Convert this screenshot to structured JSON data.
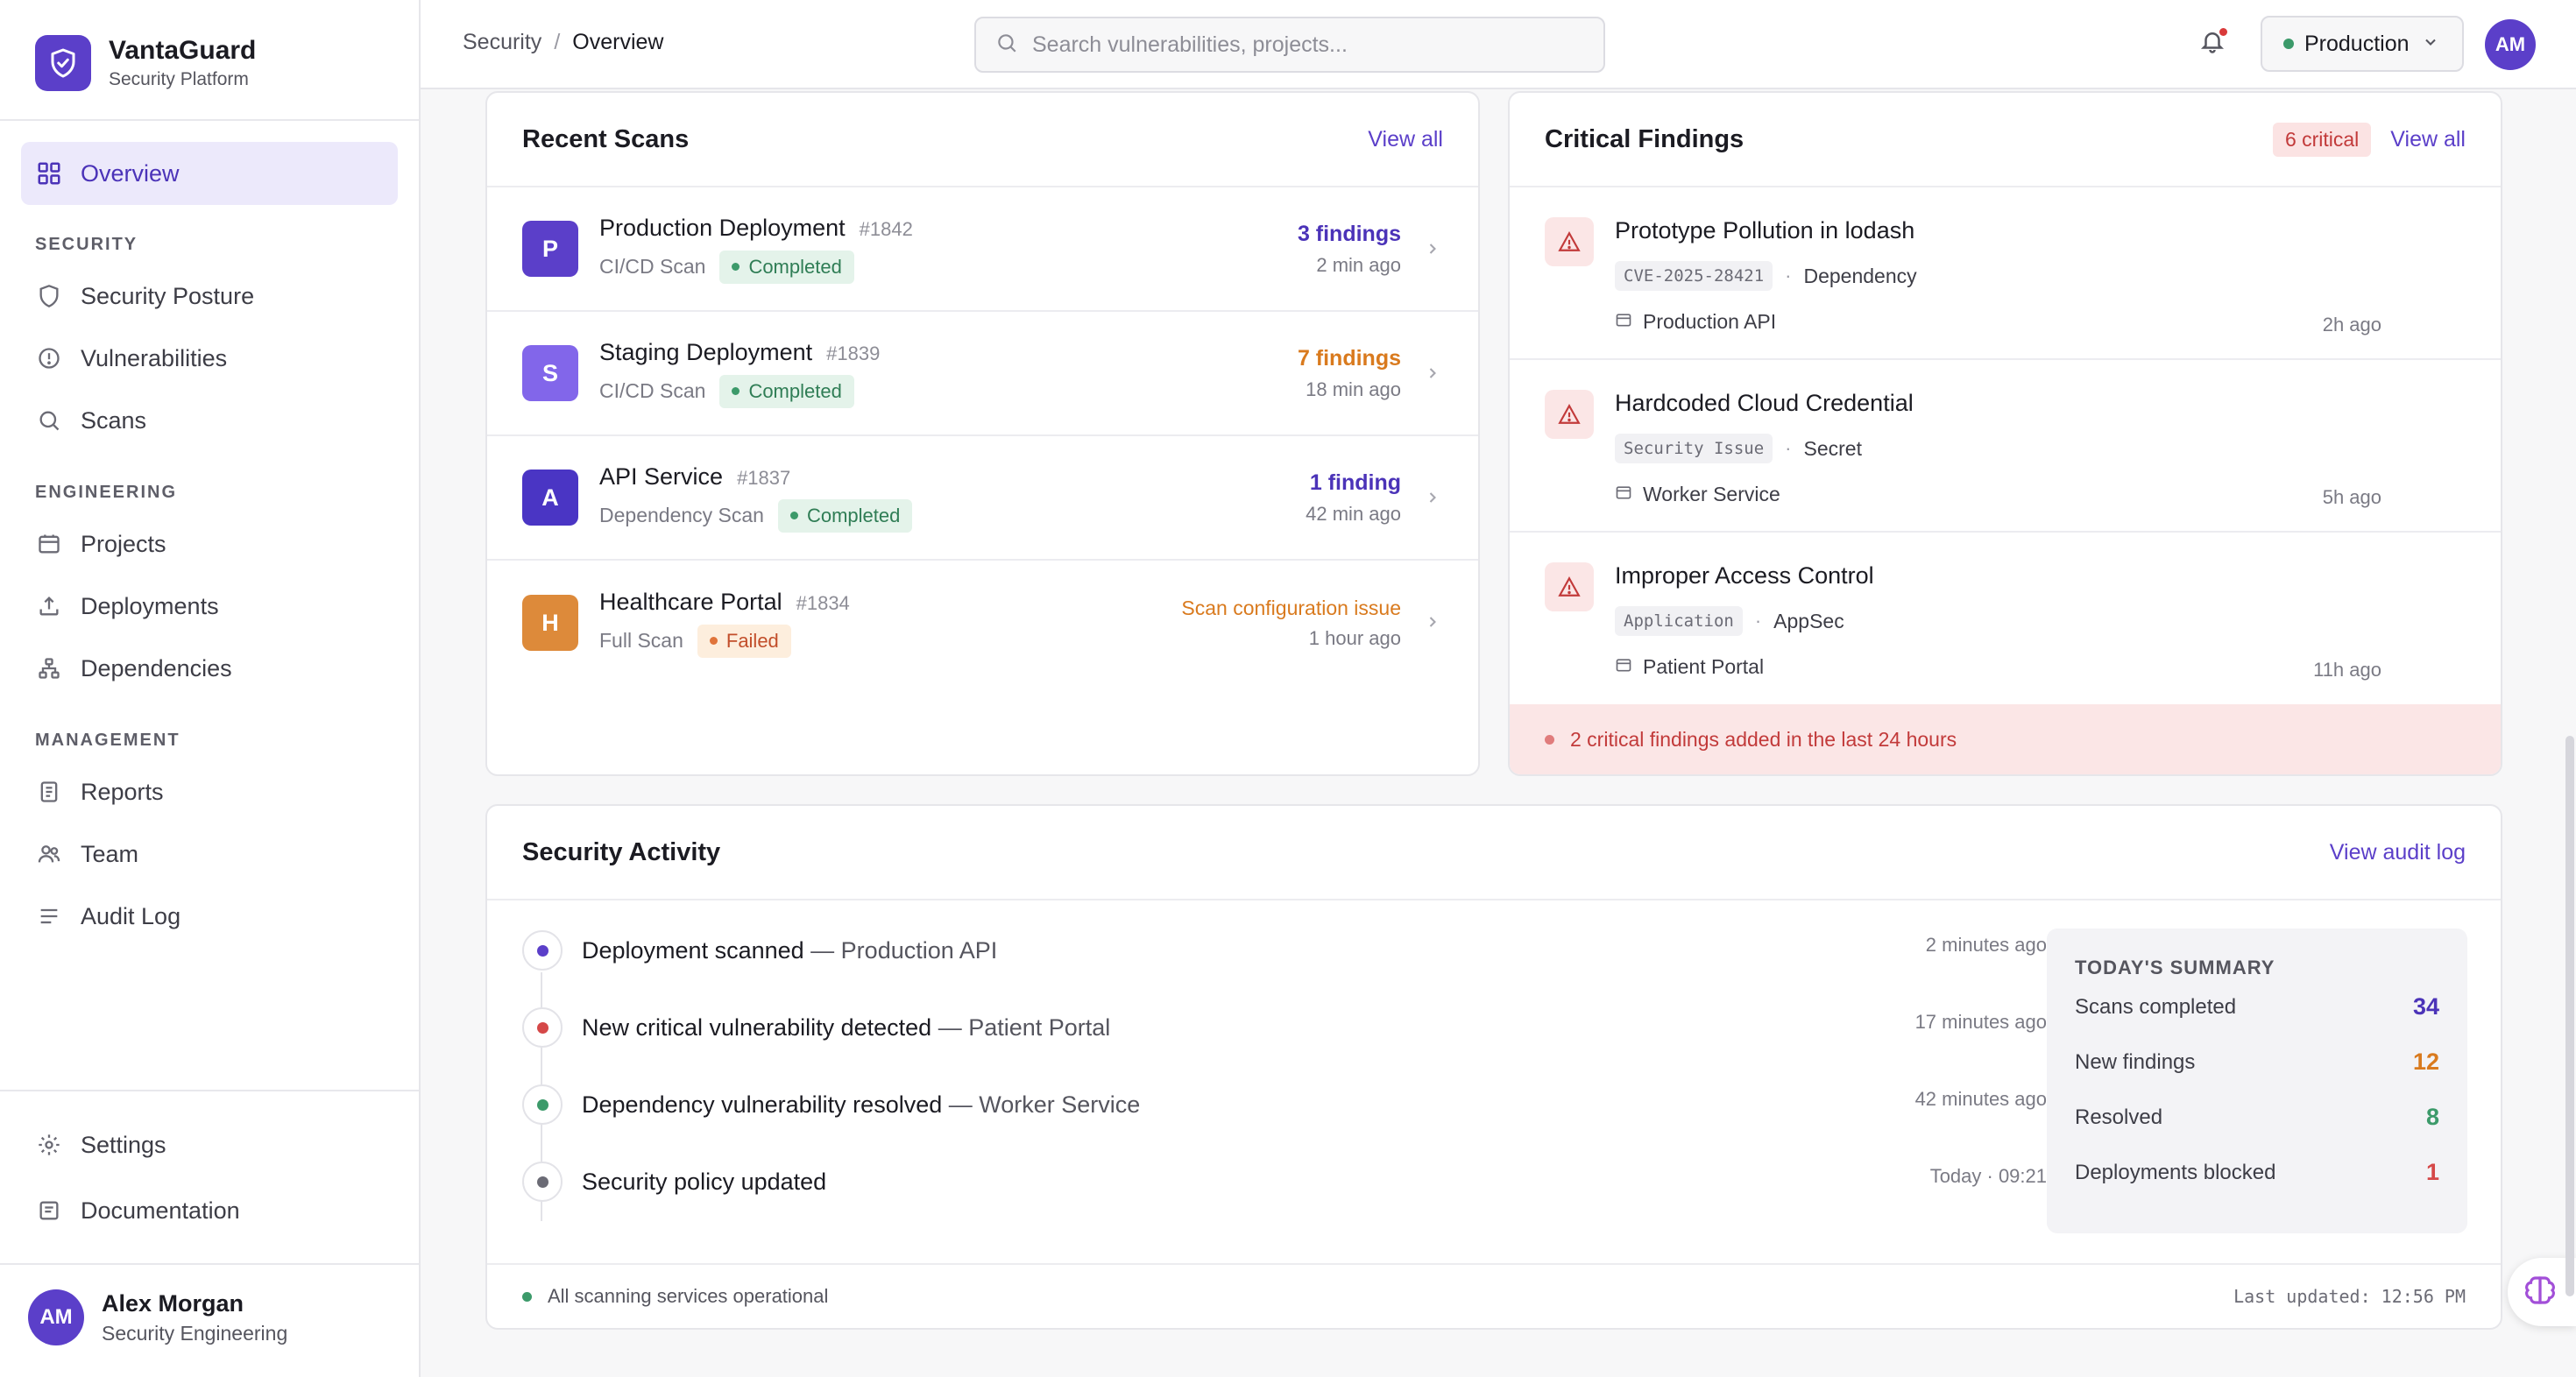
{
  "brand": {
    "name": "VantaGuard",
    "subtitle": "Security Platform"
  },
  "sidebar": {
    "overview": "Overview",
    "sections": {
      "security": "SECURITY",
      "engineering": "ENGINEERING",
      "management": "MANAGEMENT"
    },
    "items": {
      "security_posture": "Security Posture",
      "vulnerabilities": "Vulnerabilities",
      "scans": "Scans",
      "projects": "Projects",
      "deployments": "Deployments",
      "dependencies": "Dependencies",
      "reports": "Reports",
      "team": "Team",
      "audit_log": "Audit Log",
      "settings": "Settings",
      "documentation": "Documentation"
    },
    "user": {
      "initials": "AM",
      "name": "Alex Morgan",
      "role": "Security Engineering"
    }
  },
  "header": {
    "breadcrumb": {
      "parent": "Security",
      "separator": "/",
      "current": "Overview"
    },
    "search_placeholder": "Search vulnerabilities, projects...",
    "environment": "Production",
    "avatar_initials": "AM"
  },
  "recent_scans": {
    "title": "Recent Scans",
    "view_all": "View all",
    "rows": [
      {
        "initial": "P",
        "name": "Production Deployment",
        "id": "#1842",
        "type": "CI/CD Scan",
        "status": "Completed",
        "result": "3 findings",
        "time": "2 min ago",
        "icon_color": "#5b3fc9",
        "result_color": "#4b33b8"
      },
      {
        "initial": "S",
        "name": "Staging Deployment",
        "id": "#1839",
        "type": "CI/CD Scan",
        "status": "Completed",
        "result": "7 findings",
        "time": "18 min ago",
        "icon_color": "#8266ea",
        "result_color": "#d97a1e"
      },
      {
        "initial": "A",
        "name": "API Service",
        "id": "#1837",
        "type": "Dependency Scan",
        "status": "Completed",
        "result": "1 finding",
        "time": "42 min ago",
        "icon_color": "#4a35c4",
        "result_color": "#4b33b8"
      },
      {
        "initial": "H",
        "name": "Healthcare Portal",
        "id": "#1834",
        "type": "Full Scan",
        "status": "Failed",
        "result": "Scan configuration issue",
        "time": "1 hour ago",
        "icon_color": "#dd8a3a",
        "result_color": "#d97a1e"
      }
    ]
  },
  "critical_findings": {
    "title": "Critical Findings",
    "count_pill": "6 critical",
    "view_all": "View all",
    "rows": [
      {
        "title": "Prototype Pollution in lodash",
        "tag": "CVE-2025-28421",
        "category": "Dependency",
        "project": "Production API",
        "time": "2h ago"
      },
      {
        "title": "Hardcoded Cloud Credential",
        "tag": "Security Issue",
        "category": "Secret",
        "project": "Worker Service",
        "time": "5h ago"
      },
      {
        "title": "Improper Access Control",
        "tag": "Application",
        "category": "AppSec",
        "project": "Patient Portal",
        "time": "11h ago"
      }
    ],
    "banner": "2 critical findings added in the last 24 hours"
  },
  "activity": {
    "title": "Security Activity",
    "view_audit": "View audit log",
    "items": [
      {
        "event": "Deployment scanned",
        "target": "— Production API",
        "time": "2 minutes ago",
        "dot_color": "#5b3fc9"
      },
      {
        "event": "New critical vulnerability detected",
        "target": "— Patient Portal",
        "time": "17 minutes ago",
        "dot_color": "#d54848"
      },
      {
        "event": "Dependency vulnerability resolved",
        "target": "— Worker Service",
        "time": "42 minutes ago",
        "dot_color": "#3c9a6a"
      },
      {
        "event": "Security policy updated",
        "target": "",
        "time": "Today · 09:21",
        "dot_color": "#6b6b75"
      }
    ],
    "summary": {
      "title": "TODAY'S SUMMARY",
      "rows": [
        {
          "label": "Scans completed",
          "value": "34",
          "color": "#4b33b8"
        },
        {
          "label": "New findings",
          "value": "12",
          "color": "#d97a1e"
        },
        {
          "label": "Resolved",
          "value": "8",
          "color": "#3c9a6a"
        },
        {
          "label": "Deployments blocked",
          "value": "1",
          "color": "#d54848"
        }
      ]
    },
    "status": "All scanning services operational",
    "last_updated": "Last updated: 12:56 PM"
  }
}
